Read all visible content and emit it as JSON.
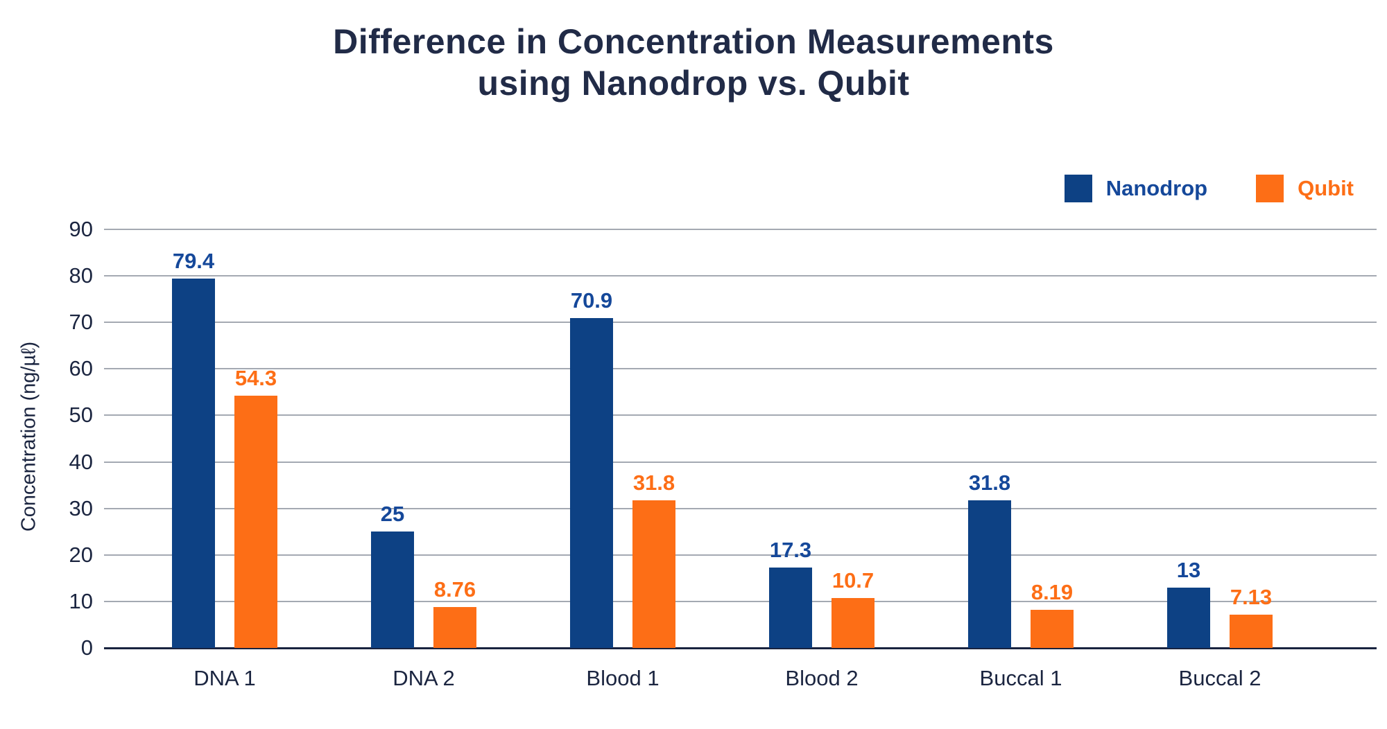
{
  "title": {
    "line1": "Difference in Concentration Measurements",
    "line2": "using Nanodrop vs. Qubit"
  },
  "legend": {
    "items": [
      {
        "label": "Nanodrop",
        "swatch_color": "#0d4184",
        "text_color": "#15489a"
      },
      {
        "label": "Qubit",
        "swatch_color": "#fd6e16",
        "text_color": "#fd6e16"
      }
    ]
  },
  "chart_data": {
    "type": "bar",
    "title": "Difference in Concentration Measurements using Nanodrop vs. Qubit",
    "categories": [
      "DNA 1",
      "DNA 2",
      "Blood 1",
      "Blood 2",
      "Buccal 1",
      "Buccal 2"
    ],
    "series": [
      {
        "name": "Nanodrop",
        "color": "#0d4184",
        "label_color": "#15489a",
        "values": [
          79.4,
          25,
          70.9,
          17.3,
          31.8,
          13
        ]
      },
      {
        "name": "Qubit",
        "color": "#fd6e16",
        "label_color": "#fd6e16",
        "values": [
          54.3,
          8.76,
          31.8,
          10.7,
          8.19,
          7.13
        ]
      }
    ],
    "xlabel": "",
    "ylabel": "Concentration (ng/µℓ)",
    "ylim": [
      0,
      90
    ],
    "ytick_step": 10,
    "ytick_labels": [
      "0",
      "10",
      "20",
      "30",
      "40",
      "50",
      "60",
      "70",
      "80",
      "90"
    ],
    "grid": true,
    "legend_position": "top-right",
    "data_labels": true
  }
}
